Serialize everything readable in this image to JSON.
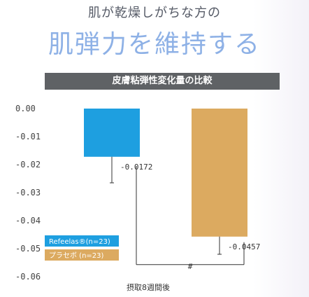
{
  "header": {
    "subtitle": "肌が乾燥しがちな方の",
    "headline": "肌弾力を維持する",
    "banner": "皮膚粘弾性変化量の比較"
  },
  "colors": {
    "refeelas": "#1e9fe0",
    "placebo": "#dcaa60",
    "headline": "#8eb1e6",
    "banner_bg": "#5f6265"
  },
  "chart_data": {
    "type": "bar",
    "xlabel": "摂取8週間後",
    "ylim": [
      -0.06,
      0.0
    ],
    "ticks": [
      "0.00",
      "-0.01",
      "-0.02",
      "-0.03",
      "-0.04",
      "-0.05",
      "-0.06"
    ],
    "tick_values": [
      0.0,
      -0.01,
      -0.02,
      -0.03,
      -0.04,
      -0.05,
      -0.06
    ],
    "series": [
      {
        "name": "Refeelas®(n=23)",
        "value": -0.0172,
        "label": "-0.0172",
        "error": 0.0093
      },
      {
        "name": "プラセボ (n=23)",
        "value": -0.0457,
        "label": "-0.0457",
        "error": 0.0063
      }
    ],
    "significance": "#"
  }
}
